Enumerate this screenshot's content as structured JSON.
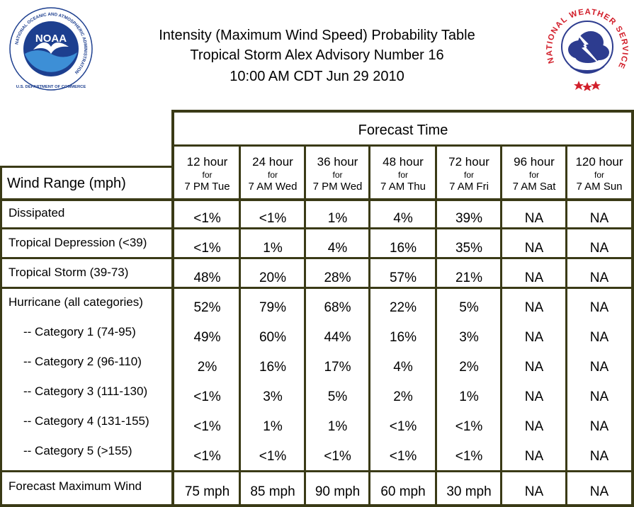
{
  "header": {
    "title_lines": [
      "Intensity (Maximum Wind Speed) Probability Table",
      "Tropical Storm Alex Advisory Number 16",
      "10:00 AM CDT Jun 29 2010"
    ],
    "noaa_logo": {
      "center_text": "NOAA",
      "ring_text": "NATIONAL OCEANIC AND ATMOSPHERIC ADMINISTRATION",
      "bottom_text": "U.S. DEPARTMENT OF COMMERCE"
    },
    "nws_logo": {
      "ring_text": "NATIONAL WEATHER SERVICE"
    }
  },
  "table": {
    "forecast_time_label": "Forecast Time",
    "row_header_label": "Wind Range (mph)",
    "columns": [
      {
        "hours": "12 hour",
        "for": "for",
        "when": "7 PM Tue"
      },
      {
        "hours": "24 hour",
        "for": "for",
        "when": "7 AM Wed"
      },
      {
        "hours": "36 hour",
        "for": "for",
        "when": "7 PM Wed"
      },
      {
        "hours": "48 hour",
        "for": "for",
        "when": "7 AM Thu"
      },
      {
        "hours": "72 hour",
        "for": "for",
        "when": "7 AM Fri"
      },
      {
        "hours": "96 hour",
        "for": "for",
        "when": "7 AM Sat"
      },
      {
        "hours": "120 hour",
        "for": "for",
        "when": "7 AM Sun"
      }
    ],
    "rows": [
      {
        "label": "Dissipated",
        "values": [
          "<1%",
          "<1%",
          "1%",
          "4%",
          "39%",
          "NA",
          "NA"
        ]
      },
      {
        "label": "Tropical Depression (<39)",
        "values": [
          "<1%",
          "1%",
          "4%",
          "16%",
          "35%",
          "NA",
          "NA"
        ]
      },
      {
        "label": "Tropical Storm (39-73)",
        "values": [
          "48%",
          "20%",
          "28%",
          "57%",
          "21%",
          "NA",
          "NA"
        ]
      },
      {
        "label": "Hurricane (all categories)",
        "values": [
          "52%",
          "79%",
          "68%",
          "22%",
          "5%",
          "NA",
          "NA"
        ]
      },
      {
        "label": "-- Category 1 (74-95)",
        "values": [
          "49%",
          "60%",
          "44%",
          "16%",
          "3%",
          "NA",
          "NA"
        ]
      },
      {
        "label": "-- Category 2 (96-110)",
        "values": [
          "2%",
          "16%",
          "17%",
          "4%",
          "2%",
          "NA",
          "NA"
        ]
      },
      {
        "label": "-- Category 3 (111-130)",
        "values": [
          "<1%",
          "3%",
          "5%",
          "2%",
          "1%",
          "NA",
          "NA"
        ]
      },
      {
        "label": "-- Category 4 (131-155)",
        "values": [
          "<1%",
          "1%",
          "1%",
          "<1%",
          "<1%",
          "NA",
          "NA"
        ]
      },
      {
        "label": "-- Category 5 (>155)",
        "values": [
          "<1%",
          "<1%",
          "<1%",
          "<1%",
          "<1%",
          "NA",
          "NA"
        ]
      },
      {
        "label": "Forecast Maximum Wind",
        "values": [
          "75 mph",
          "85 mph",
          "90 mph",
          "60 mph",
          "30 mph",
          "NA",
          "NA"
        ]
      }
    ]
  },
  "colors": {
    "frame": "#3a3a16",
    "noaa_blue": "#1d3f8f",
    "noaa_light": "#3d8fd6",
    "nws_red": "#d21f2b",
    "nws_blue": "#2d3c8f"
  }
}
